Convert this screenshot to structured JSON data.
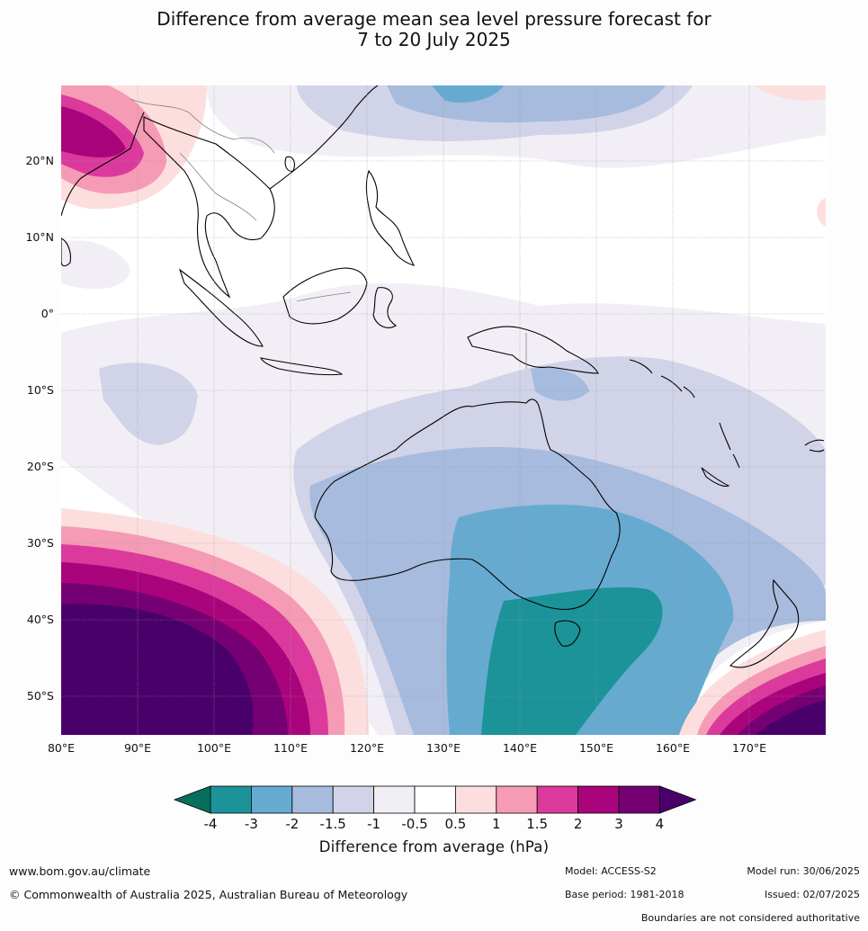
{
  "title_line1": "Difference from average mean sea level pressure forecast for",
  "title_line2": "7 to 20 July 2025",
  "lat_labels": [
    "20°N",
    "10°N",
    "0°",
    "10°S",
    "20°S",
    "30°S",
    "40°S",
    "50°S"
  ],
  "lon_labels": [
    "80°E",
    "90°E",
    "100°E",
    "110°E",
    "120°E",
    "130°E",
    "140°E",
    "150°E",
    "160°E",
    "170°E"
  ],
  "colorbar": {
    "title": "Difference from average (hPa)",
    "ticks": [
      "-4",
      "-3",
      "-2",
      "-1.5",
      "-1",
      "-0.5",
      "0.5",
      "1",
      "1.5",
      "2",
      "3",
      "4"
    ],
    "colors": [
      "#06705c",
      "#1b9399",
      "#66aad0",
      "#a6bbdd",
      "#d1d3e8",
      "#f2eef6",
      "#ffffff",
      "#fddede",
      "#f59bb5",
      "#db3a9c",
      "#a9047b",
      "#750074",
      "#4a006a"
    ]
  },
  "footer": {
    "url": "www.bom.gov.au/climate",
    "copyright": "© Commonwealth of Australia 2025, Australian Bureau of Meteorology",
    "model": "Model: ACCESS-S2",
    "model_run": "Model run: 30/06/2025",
    "base_period": "Base period: 1981-2018",
    "issued": "Issued: 02/07/2025",
    "disclaimer": "Boundaries are not considered authoritative"
  }
}
